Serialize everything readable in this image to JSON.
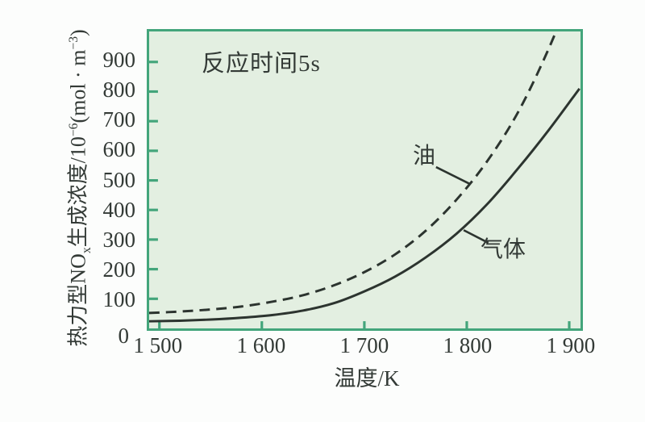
{
  "figure": {
    "annotation": "反应时间5s",
    "x_axis_title": "温度/K",
    "origin_label": "0",
    "ylabel_parts": {
      "p1": "热力型NO",
      "sub1": "x",
      "p2": "生成浓度/10",
      "sup1": "−6",
      "p3": "(mol · m",
      "sup2": "−3",
      "p4": ")"
    },
    "series_labels": {
      "oil": "油",
      "gas": "气体"
    }
  },
  "colors": {
    "page_bg": "#fcfdfc",
    "plot_bg": "#e3efe1",
    "plot_border": "#43a57b",
    "tick": "#43a57b",
    "curve": "#2c342f",
    "text": "#333a36"
  },
  "chart_data": {
    "type": "line",
    "title": "",
    "annotation": "反应时间5s",
    "xlabel": "温度/K",
    "ylabel": "热力型NOx生成浓度/10⁻⁶(mol·m⁻³)",
    "x_range": [
      1490,
      1911
    ],
    "y_range": [
      0,
      1003
    ],
    "x_ticks": [
      1500,
      1600,
      1700,
      1800,
      1900
    ],
    "x_tick_labels": [
      "1 500",
      "1 600",
      "1 700",
      "1 800",
      "1 900"
    ],
    "y_ticks": [
      0,
      100,
      200,
      300,
      400,
      500,
      600,
      700,
      800,
      900
    ],
    "grid": false,
    "legend": "inline-labels",
    "series": [
      {
        "name": "油",
        "style": "dashed",
        "color": "#2c342f",
        "x": [
          1490,
          1520,
          1550,
          1580,
          1610,
          1640,
          1670,
          1700,
          1730,
          1760,
          1790,
          1820,
          1850,
          1880,
          1910
        ],
        "y": [
          52,
          57,
          64,
          74,
          90,
          112,
          145,
          190,
          250,
          330,
          435,
          565,
          730,
          945,
          1200
        ]
      },
      {
        "name": "气体",
        "style": "solid",
        "color": "#2c342f",
        "x": [
          1490,
          1520,
          1550,
          1580,
          1610,
          1640,
          1670,
          1700,
          1730,
          1760,
          1790,
          1820,
          1850,
          1880,
          1910
        ],
        "y": [
          24,
          26,
          30,
          36,
          45,
          60,
          85,
          125,
          175,
          240,
          320,
          420,
          540,
          670,
          810
        ]
      }
    ],
    "leaders": [
      {
        "series": "油",
        "from": [
          1770,
          545
        ],
        "to": [
          1803,
          488
        ]
      },
      {
        "series": "气体",
        "from": [
          1797,
          332
        ],
        "to": [
          1821,
          289
        ]
      }
    ]
  }
}
